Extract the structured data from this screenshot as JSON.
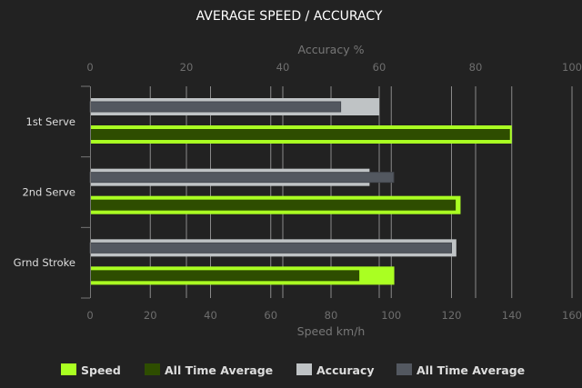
{
  "chart_data": {
    "type": "bar",
    "orientation": "horizontal",
    "title": "AVERAGE SPEED / ACCURACY",
    "categories": [
      "1st Serve",
      "2nd Serve",
      "Grnd Stroke"
    ],
    "x_top": {
      "label": "Accuracy %",
      "range": [
        0,
        100
      ],
      "ticks": [
        0,
        20,
        40,
        60,
        80,
        100
      ]
    },
    "x_bottom": {
      "label": "Speed km/h",
      "range": [
        0,
        160
      ],
      "ticks": [
        0,
        20,
        40,
        60,
        80,
        100,
        120,
        140,
        160
      ]
    },
    "grid": true,
    "legend_position": "bottom",
    "series": [
      {
        "name": "Speed",
        "axis": "bottom",
        "values": [
          140,
          123,
          101
        ],
        "color": "#aaff22"
      },
      {
        "name": "All Time Average",
        "axis": "bottom",
        "values": [
          140,
          122,
          90
        ],
        "color": "#2e4d00"
      },
      {
        "name": "Accuracy",
        "axis": "top",
        "values": [
          60,
          58,
          76
        ],
        "color": "#bfc3c5"
      },
      {
        "name": "All Time Average",
        "axis": "top",
        "values": [
          52,
          63,
          75
        ],
        "color": "#535860"
      }
    ]
  }
}
